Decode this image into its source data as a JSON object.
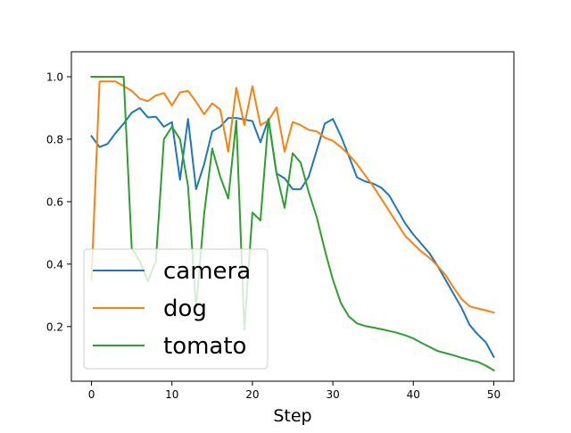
{
  "chart_data": {
    "type": "line",
    "title": "",
    "xlabel": "Step",
    "ylabel": "",
    "xlim": [
      -2.5,
      52.5
    ],
    "ylim": [
      0.025,
      1.08
    ],
    "xticks": [
      0,
      10,
      20,
      30,
      40,
      50
    ],
    "xtick_labels": [
      "0",
      "10",
      "20",
      "30",
      "40",
      "50"
    ],
    "yticks": [
      0.2,
      0.4,
      0.6,
      0.8,
      1.0
    ],
    "ytick_labels": [
      "0.2",
      "0.4",
      "0.6",
      "0.8",
      "1.0"
    ],
    "grid": false,
    "legend_position": "lower-left",
    "x": [
      0,
      1,
      2,
      3,
      4,
      5,
      6,
      7,
      8,
      9,
      10,
      11,
      12,
      13,
      14,
      15,
      16,
      17,
      18,
      19,
      20,
      21,
      22,
      23,
      24,
      25,
      26,
      27,
      28,
      29,
      30,
      31,
      32,
      33,
      34,
      35,
      36,
      37,
      38,
      39,
      40,
      41,
      42,
      43,
      44,
      45,
      46,
      47,
      48,
      49,
      50
    ],
    "series": [
      {
        "name": "camera",
        "color": "#1f77b4",
        "values": [
          0.81,
          0.775,
          0.785,
          0.82,
          0.85,
          0.885,
          0.9,
          0.87,
          0.872,
          0.84,
          0.855,
          0.67,
          0.865,
          0.64,
          0.72,
          0.825,
          0.84,
          0.868,
          0.868,
          0.863,
          0.858,
          0.79,
          0.865,
          0.69,
          0.675,
          0.64,
          0.64,
          0.68,
          0.765,
          0.85,
          0.865,
          0.81,
          0.745,
          0.678,
          0.665,
          0.658,
          0.645,
          0.62,
          0.575,
          0.53,
          0.495,
          0.465,
          0.435,
          0.395,
          0.35,
          0.305,
          0.26,
          0.205,
          0.175,
          0.15,
          0.103
        ]
      },
      {
        "name": "dog",
        "color": "#ff7f0e",
        "values": [
          0.35,
          0.985,
          0.985,
          0.985,
          0.97,
          0.955,
          0.93,
          0.922,
          0.94,
          0.948,
          0.908,
          0.95,
          0.955,
          0.92,
          0.88,
          0.915,
          0.895,
          0.76,
          0.965,
          0.845,
          0.97,
          0.845,
          0.86,
          0.902,
          0.76,
          0.855,
          0.845,
          0.83,
          0.825,
          0.805,
          0.795,
          0.775,
          0.75,
          0.72,
          0.685,
          0.65,
          0.61,
          0.57,
          0.53,
          0.49,
          0.465,
          0.44,
          0.42,
          0.395,
          0.365,
          0.325,
          0.288,
          0.265,
          0.258,
          0.252,
          0.245
        ]
      },
      {
        "name": "tomato",
        "color": "#2ca02c",
        "values": [
          1.0,
          1.0,
          1.0,
          1.0,
          1.0,
          0.45,
          0.41,
          0.345,
          0.41,
          0.8,
          0.84,
          0.8,
          0.65,
          0.26,
          0.56,
          0.77,
          0.68,
          0.61,
          0.86,
          0.19,
          0.565,
          0.54,
          0.865,
          0.69,
          0.58,
          0.755,
          0.725,
          0.63,
          0.55,
          0.445,
          0.35,
          0.275,
          0.232,
          0.21,
          0.202,
          0.197,
          0.192,
          0.186,
          0.18,
          0.172,
          0.162,
          0.148,
          0.135,
          0.122,
          0.115,
          0.108,
          0.1,
          0.093,
          0.087,
          0.075,
          0.06
        ]
      }
    ]
  }
}
